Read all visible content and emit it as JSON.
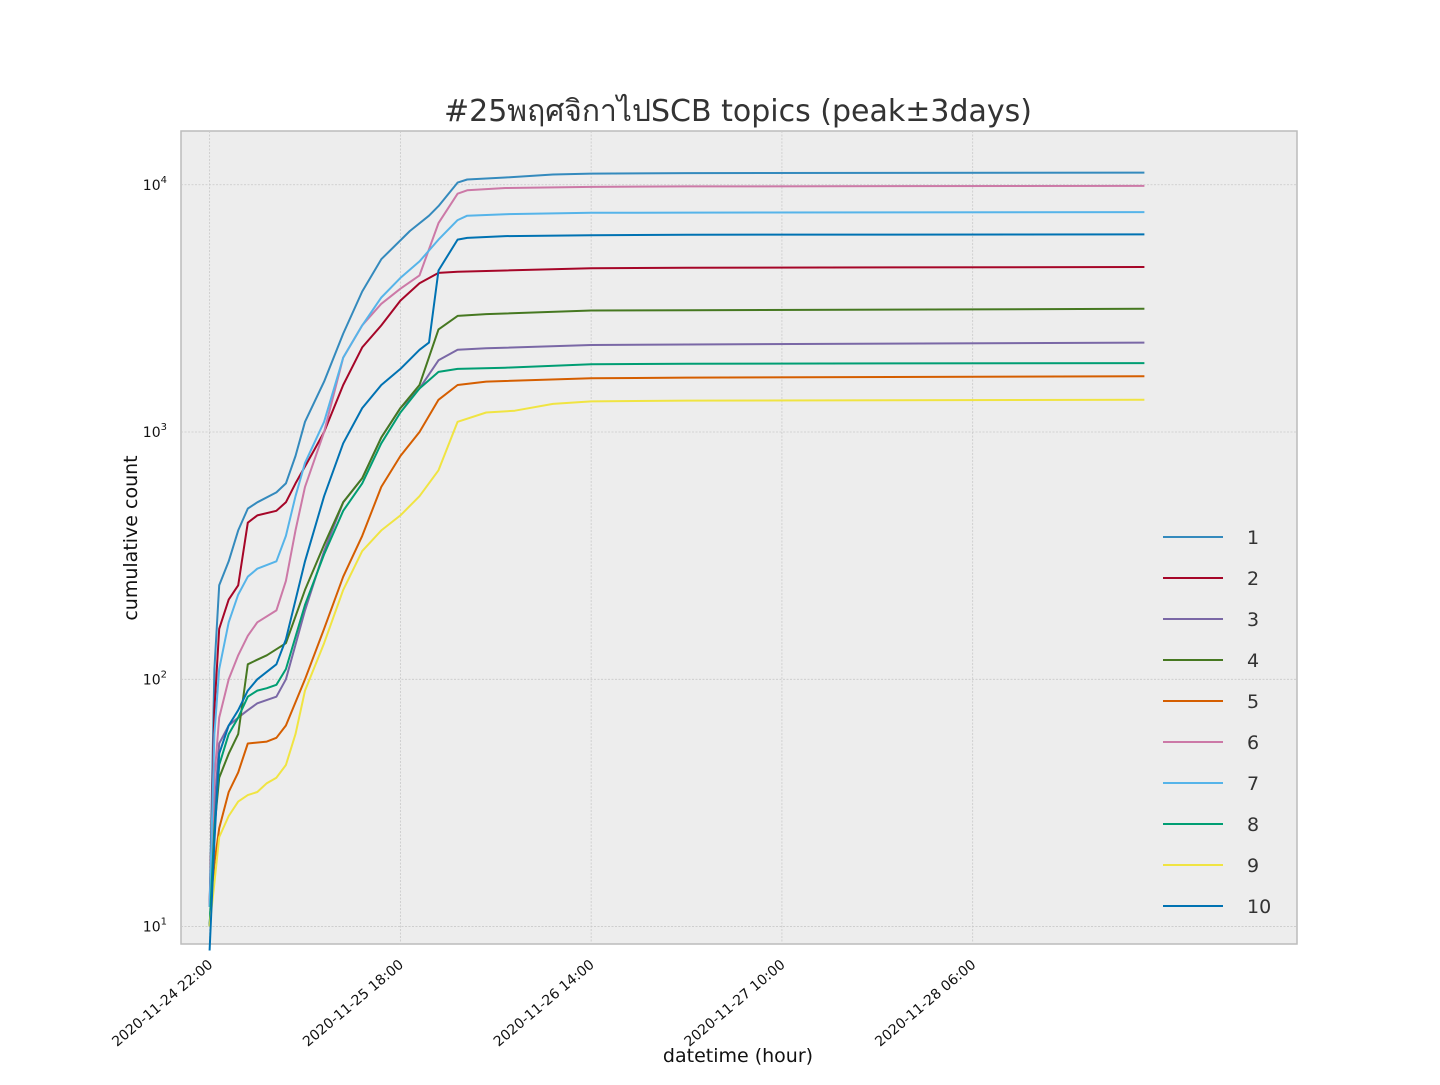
{
  "chart_data": {
    "type": "line",
    "title": "#25พฤศจิกาไปSCB topics (peak±3days)",
    "xlabel": "datetime (hour)",
    "ylabel": "cumulative count",
    "yscale": "log",
    "ylim": [
      8.5,
      16500
    ],
    "xlim": [
      "2020-11-24 19:00",
      "2020-11-29 16:00"
    ],
    "grid": true,
    "legend_position": "lower-right",
    "xticks": [
      "2020-11-24 22:00",
      "2020-11-25 18:00",
      "2020-11-26 14:00",
      "2020-11-27 10:00",
      "2020-11-28 06:00"
    ],
    "yticks": [
      {
        "value": 10,
        "base": "10",
        "exp": "1"
      },
      {
        "value": 100,
        "base": "10",
        "exp": "2"
      },
      {
        "value": 1000,
        "base": "10",
        "exp": "3"
      },
      {
        "value": 10000,
        "base": "10",
        "exp": "4"
      }
    ],
    "series": [
      {
        "name": "1",
        "color": "#348ABD",
        "points": [
          [
            "2020-11-24 22:00",
            12
          ],
          [
            "2020-11-24 22:30",
            110
          ],
          [
            "2020-11-24 23:00",
            240
          ],
          [
            "2020-11-25 00:00",
            300
          ],
          [
            "2020-11-25 01:00",
            400
          ],
          [
            "2020-11-25 02:00",
            490
          ],
          [
            "2020-11-25 03:00",
            520
          ],
          [
            "2020-11-25 05:00",
            570
          ],
          [
            "2020-11-25 06:00",
            620
          ],
          [
            "2020-11-25 07:00",
            800
          ],
          [
            "2020-11-25 08:00",
            1100
          ],
          [
            "2020-11-25 10:00",
            1600
          ],
          [
            "2020-11-25 12:00",
            2500
          ],
          [
            "2020-11-25 14:00",
            3700
          ],
          [
            "2020-11-25 16:00",
            5000
          ],
          [
            "2020-11-25 19:00",
            6500
          ],
          [
            "2020-11-25 21:00",
            7500
          ],
          [
            "2020-11-25 22:00",
            8200
          ],
          [
            "2020-11-26 00:00",
            10200
          ],
          [
            "2020-11-26 01:00",
            10500
          ],
          [
            "2020-11-26 05:00",
            10700
          ],
          [
            "2020-11-26 10:00",
            11000
          ],
          [
            "2020-11-26 14:00",
            11100
          ],
          [
            "2020-11-27 00:00",
            11150
          ],
          [
            "2020-11-29 00:00",
            11200
          ]
        ]
      },
      {
        "name": "2",
        "color": "#A60628",
        "points": [
          [
            "2020-11-24 22:00",
            12
          ],
          [
            "2020-11-24 22:30",
            75
          ],
          [
            "2020-11-24 23:00",
            160
          ],
          [
            "2020-11-25 00:00",
            210
          ],
          [
            "2020-11-25 01:00",
            240
          ],
          [
            "2020-11-25 02:00",
            430
          ],
          [
            "2020-11-25 03:00",
            460
          ],
          [
            "2020-11-25 05:00",
            480
          ],
          [
            "2020-11-25 06:00",
            520
          ],
          [
            "2020-11-25 07:00",
            620
          ],
          [
            "2020-11-25 09:00",
            850
          ],
          [
            "2020-11-25 10:00",
            1000
          ],
          [
            "2020-11-25 12:00",
            1550
          ],
          [
            "2020-11-25 14:00",
            2200
          ],
          [
            "2020-11-25 16:00",
            2700
          ],
          [
            "2020-11-25 18:00",
            3400
          ],
          [
            "2020-11-25 20:00",
            4000
          ],
          [
            "2020-11-25 22:00",
            4400
          ],
          [
            "2020-11-26 00:00",
            4450
          ],
          [
            "2020-11-26 05:00",
            4500
          ],
          [
            "2020-11-26 14:00",
            4600
          ],
          [
            "2020-11-27 00:00",
            4620
          ],
          [
            "2020-11-29 00:00",
            4650
          ]
        ]
      },
      {
        "name": "3",
        "color": "#7A68A6",
        "points": [
          [
            "2020-11-24 22:00",
            12
          ],
          [
            "2020-11-24 22:30",
            30
          ],
          [
            "2020-11-24 23:00",
            55
          ],
          [
            "2020-11-25 00:00",
            65
          ],
          [
            "2020-11-25 01:00",
            70
          ],
          [
            "2020-11-25 02:00",
            75
          ],
          [
            "2020-11-25 03:00",
            80
          ],
          [
            "2020-11-25 05:00",
            85
          ],
          [
            "2020-11-25 06:00",
            100
          ],
          [
            "2020-11-25 08:00",
            190
          ],
          [
            "2020-11-25 10:00",
            330
          ],
          [
            "2020-11-25 12:00",
            520
          ],
          [
            "2020-11-25 14:00",
            650
          ],
          [
            "2020-11-25 16:00",
            950
          ],
          [
            "2020-11-25 18:00",
            1250
          ],
          [
            "2020-11-25 20:00",
            1500
          ],
          [
            "2020-11-25 22:00",
            1950
          ],
          [
            "2020-11-26 00:00",
            2150
          ],
          [
            "2020-11-26 03:00",
            2180
          ],
          [
            "2020-11-26 14:00",
            2250
          ],
          [
            "2020-11-27 00:00",
            2260
          ],
          [
            "2020-11-29 00:00",
            2300
          ]
        ]
      },
      {
        "name": "4",
        "color": "#467821",
        "points": [
          [
            "2020-11-24 22:00",
            10
          ],
          [
            "2020-11-24 22:30",
            25
          ],
          [
            "2020-11-24 23:00",
            40
          ],
          [
            "2020-11-25 00:00",
            50
          ],
          [
            "2020-11-25 01:00",
            60
          ],
          [
            "2020-11-25 02:00",
            115
          ],
          [
            "2020-11-25 03:00",
            120
          ],
          [
            "2020-11-25 04:00",
            125
          ],
          [
            "2020-11-25 06:00",
            140
          ],
          [
            "2020-11-25 08:00",
            230
          ],
          [
            "2020-11-25 10:00",
            350
          ],
          [
            "2020-11-25 12:00",
            520
          ],
          [
            "2020-11-25 14:00",
            650
          ],
          [
            "2020-11-25 16:00",
            950
          ],
          [
            "2020-11-25 18:00",
            1250
          ],
          [
            "2020-11-25 20:00",
            1550
          ],
          [
            "2020-11-25 22:00",
            2600
          ],
          [
            "2020-11-26 00:00",
            2950
          ],
          [
            "2020-11-26 03:00",
            3000
          ],
          [
            "2020-11-26 14:00",
            3100
          ],
          [
            "2020-11-27 00:00",
            3110
          ],
          [
            "2020-11-29 00:00",
            3150
          ]
        ]
      },
      {
        "name": "5",
        "color": "#D55E00",
        "points": [
          [
            "2020-11-24 22:00",
            10
          ],
          [
            "2020-11-24 22:30",
            18
          ],
          [
            "2020-11-24 23:00",
            25
          ],
          [
            "2020-11-25 00:00",
            35
          ],
          [
            "2020-11-25 01:00",
            42
          ],
          [
            "2020-11-25 02:00",
            55
          ],
          [
            "2020-11-25 04:00",
            56
          ],
          [
            "2020-11-25 05:00",
            58
          ],
          [
            "2020-11-25 06:00",
            65
          ],
          [
            "2020-11-25 08:00",
            100
          ],
          [
            "2020-11-25 10:00",
            160
          ],
          [
            "2020-11-25 12:00",
            260
          ],
          [
            "2020-11-25 14:00",
            380
          ],
          [
            "2020-11-25 16:00",
            600
          ],
          [
            "2020-11-25 18:00",
            800
          ],
          [
            "2020-11-25 20:00",
            1000
          ],
          [
            "2020-11-25 22:00",
            1350
          ],
          [
            "2020-11-26 00:00",
            1550
          ],
          [
            "2020-11-26 03:00",
            1600
          ],
          [
            "2020-11-26 14:00",
            1650
          ],
          [
            "2020-11-27 00:00",
            1660
          ],
          [
            "2020-11-29 00:00",
            1680
          ]
        ]
      },
      {
        "name": "6",
        "color": "#CC79A7",
        "points": [
          [
            "2020-11-24 22:00",
            12
          ],
          [
            "2020-11-24 22:30",
            40
          ],
          [
            "2020-11-24 23:00",
            70
          ],
          [
            "2020-11-25 00:00",
            100
          ],
          [
            "2020-11-25 01:00",
            125
          ],
          [
            "2020-11-25 02:00",
            150
          ],
          [
            "2020-11-25 03:00",
            170
          ],
          [
            "2020-11-25 05:00",
            190
          ],
          [
            "2020-11-25 06:00",
            250
          ],
          [
            "2020-11-25 07:00",
            400
          ],
          [
            "2020-11-25 08:00",
            600
          ],
          [
            "2020-11-25 10:00",
            1000
          ],
          [
            "2020-11-25 12:00",
            2000
          ],
          [
            "2020-11-25 14:00",
            2700
          ],
          [
            "2020-11-25 16:00",
            3300
          ],
          [
            "2020-11-25 18:00",
            3800
          ],
          [
            "2020-11-25 20:00",
            4300
          ],
          [
            "2020-11-25 22:00",
            7000
          ],
          [
            "2020-11-26 00:00",
            9200
          ],
          [
            "2020-11-26 01:00",
            9500
          ],
          [
            "2020-11-26 05:00",
            9700
          ],
          [
            "2020-11-26 14:00",
            9800
          ],
          [
            "2020-11-27 00:00",
            9850
          ],
          [
            "2020-11-29 00:00",
            9900
          ]
        ]
      },
      {
        "name": "7",
        "color": "#56B4E9",
        "points": [
          [
            "2020-11-24 22:00",
            12
          ],
          [
            "2020-11-24 22:30",
            60
          ],
          [
            "2020-11-24 23:00",
            110
          ],
          [
            "2020-11-25 00:00",
            170
          ],
          [
            "2020-11-25 01:00",
            220
          ],
          [
            "2020-11-25 02:00",
            260
          ],
          [
            "2020-11-25 03:00",
            280
          ],
          [
            "2020-11-25 05:00",
            300
          ],
          [
            "2020-11-25 06:00",
            380
          ],
          [
            "2020-11-25 07:00",
            550
          ],
          [
            "2020-11-25 08:00",
            750
          ],
          [
            "2020-11-25 10:00",
            1100
          ],
          [
            "2020-11-25 12:00",
            2000
          ],
          [
            "2020-11-25 14:00",
            2700
          ],
          [
            "2020-11-25 16:00",
            3500
          ],
          [
            "2020-11-25 18:00",
            4200
          ],
          [
            "2020-11-25 20:00",
            4900
          ],
          [
            "2020-11-25 22:00",
            6000
          ],
          [
            "2020-11-26 00:00",
            7200
          ],
          [
            "2020-11-26 01:00",
            7500
          ],
          [
            "2020-11-26 05:00",
            7600
          ],
          [
            "2020-11-26 14:00",
            7700
          ],
          [
            "2020-11-27 00:00",
            7720
          ],
          [
            "2020-11-29 00:00",
            7750
          ]
        ]
      },
      {
        "name": "8",
        "color": "#009E73",
        "points": [
          [
            "2020-11-24 22:00",
            10
          ],
          [
            "2020-11-24 22:30",
            25
          ],
          [
            "2020-11-24 23:00",
            45
          ],
          [
            "2020-11-25 00:00",
            60
          ],
          [
            "2020-11-25 01:00",
            70
          ],
          [
            "2020-11-25 02:00",
            85
          ],
          [
            "2020-11-25 03:00",
            90
          ],
          [
            "2020-11-25 04:00",
            92
          ],
          [
            "2020-11-25 05:00",
            95
          ],
          [
            "2020-11-25 06:00",
            110
          ],
          [
            "2020-11-25 08:00",
            200
          ],
          [
            "2020-11-25 10:00",
            320
          ],
          [
            "2020-11-25 12:00",
            480
          ],
          [
            "2020-11-25 14:00",
            620
          ],
          [
            "2020-11-25 16:00",
            900
          ],
          [
            "2020-11-25 18:00",
            1200
          ],
          [
            "2020-11-25 20:00",
            1500
          ],
          [
            "2020-11-25 22:00",
            1750
          ],
          [
            "2020-11-26 00:00",
            1800
          ],
          [
            "2020-11-26 05:00",
            1820
          ],
          [
            "2020-11-26 14:00",
            1880
          ],
          [
            "2020-11-27 00:00",
            1890
          ],
          [
            "2020-11-29 00:00",
            1900
          ]
        ]
      },
      {
        "name": "9",
        "color": "#F0E442",
        "points": [
          [
            "2020-11-24 22:00",
            10
          ],
          [
            "2020-11-24 22:30",
            15
          ],
          [
            "2020-11-24 23:00",
            23
          ],
          [
            "2020-11-25 00:00",
            28
          ],
          [
            "2020-11-25 01:00",
            32
          ],
          [
            "2020-11-25 02:00",
            34
          ],
          [
            "2020-11-25 03:00",
            35
          ],
          [
            "2020-11-25 04:00",
            38
          ],
          [
            "2020-11-25 05:00",
            40
          ],
          [
            "2020-11-25 06:00",
            45
          ],
          [
            "2020-11-25 07:00",
            60
          ],
          [
            "2020-11-25 08:00",
            90
          ],
          [
            "2020-11-25 10:00",
            140
          ],
          [
            "2020-11-25 12:00",
            230
          ],
          [
            "2020-11-25 14:00",
            330
          ],
          [
            "2020-11-25 16:00",
            400
          ],
          [
            "2020-11-25 18:00",
            460
          ],
          [
            "2020-11-25 20:00",
            550
          ],
          [
            "2020-11-25 22:00",
            700
          ],
          [
            "2020-11-26 00:00",
            1100
          ],
          [
            "2020-11-26 03:00",
            1200
          ],
          [
            "2020-11-26 06:00",
            1220
          ],
          [
            "2020-11-26 10:00",
            1300
          ],
          [
            "2020-11-26 14:00",
            1330
          ],
          [
            "2020-11-27 00:00",
            1340
          ],
          [
            "2020-11-29 00:00",
            1350
          ]
        ]
      },
      {
        "name": "10",
        "color": "#0072B2",
        "points": [
          [
            "2020-11-24 22:00",
            8
          ],
          [
            "2020-11-24 22:30",
            22
          ],
          [
            "2020-11-24 23:00",
            50
          ],
          [
            "2020-11-25 00:00",
            65
          ],
          [
            "2020-11-25 01:00",
            75
          ],
          [
            "2020-11-25 02:00",
            90
          ],
          [
            "2020-11-25 03:00",
            100
          ],
          [
            "2020-11-25 05:00",
            115
          ],
          [
            "2020-11-25 06:00",
            145
          ],
          [
            "2020-11-25 08:00",
            300
          ],
          [
            "2020-11-25 10:00",
            550
          ],
          [
            "2020-11-25 12:00",
            900
          ],
          [
            "2020-11-25 14:00",
            1250
          ],
          [
            "2020-11-25 16:00",
            1550
          ],
          [
            "2020-11-25 18:00",
            1800
          ],
          [
            "2020-11-25 20:00",
            2150
          ],
          [
            "2020-11-25 21:00",
            2300
          ],
          [
            "2020-11-25 22:00",
            4500
          ],
          [
            "2020-11-26 00:00",
            6000
          ],
          [
            "2020-11-26 01:00",
            6100
          ],
          [
            "2020-11-26 05:00",
            6200
          ],
          [
            "2020-11-26 14:00",
            6250
          ],
          [
            "2020-11-27 00:00",
            6280
          ],
          [
            "2020-11-29 00:00",
            6300
          ]
        ]
      }
    ]
  }
}
